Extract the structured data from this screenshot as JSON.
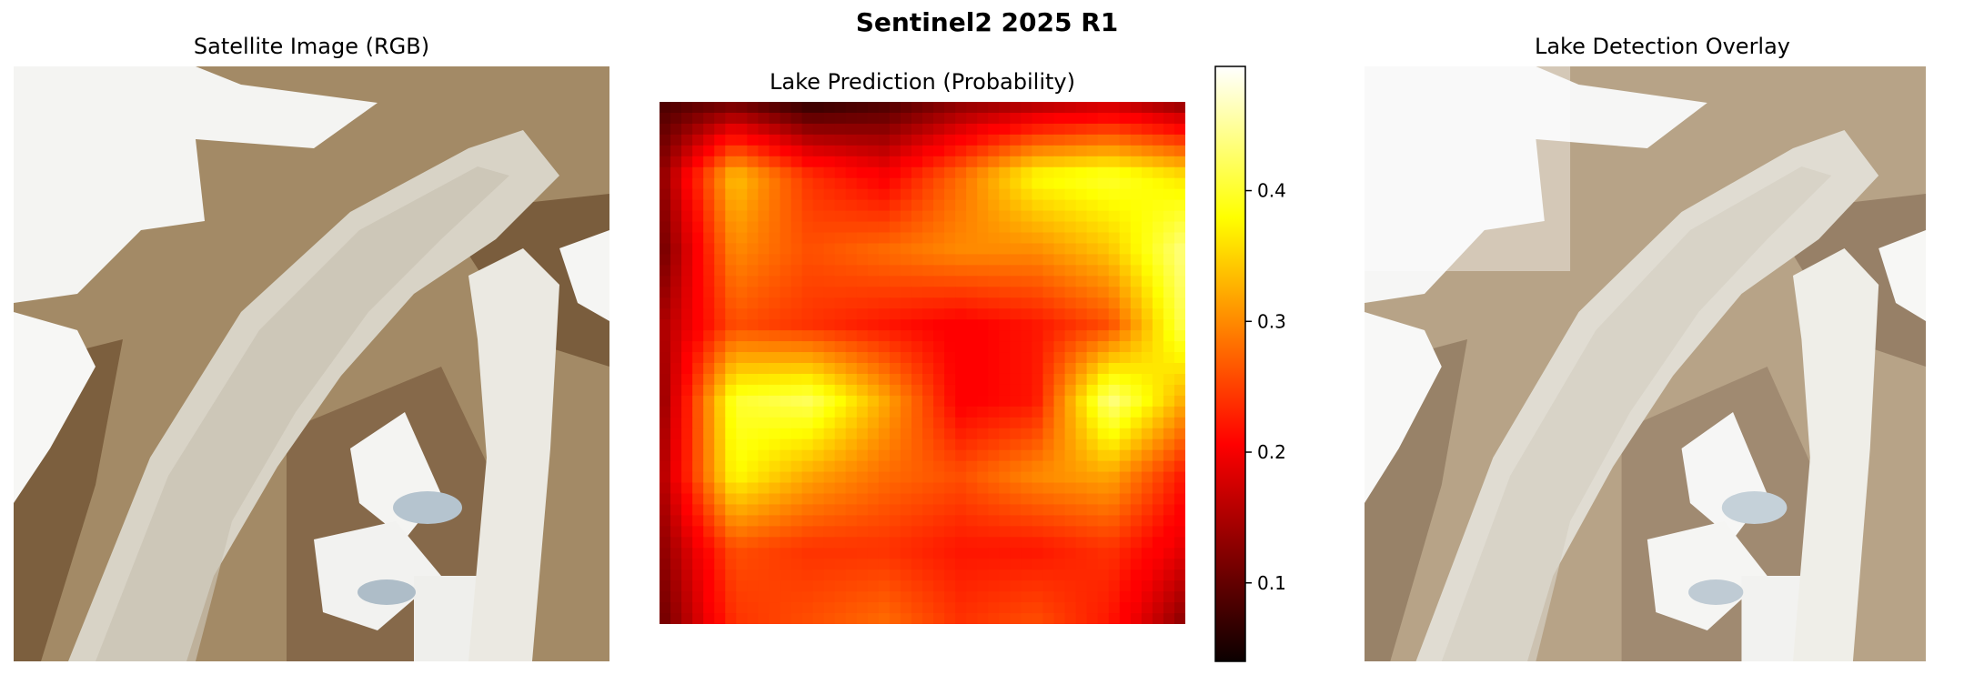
{
  "figure": {
    "title": "Sentinel2 2025 R1"
  },
  "panels": {
    "rgb": {
      "title": "Satellite Image (RGB)"
    },
    "probability": {
      "title": "Lake Prediction (Probability)",
      "colormap": "hot"
    },
    "overlay": {
      "title": "Lake Detection Overlay"
    }
  },
  "colorbar": {
    "range": [
      0.04,
      0.495
    ],
    "ticks": [
      {
        "value": 0.1,
        "label": "0.1"
      },
      {
        "value": 0.2,
        "label": "0.2"
      },
      {
        "value": 0.3,
        "label": "0.3"
      },
      {
        "value": 0.4,
        "label": "0.4"
      }
    ]
  },
  "chart_data": {
    "type": "heatmap",
    "title": "Lake Prediction (Probability)",
    "colormap": "hot",
    "vmin": 0.04,
    "vmax": 0.495,
    "colorbar_ticks": [
      0.1,
      0.2,
      0.3,
      0.4
    ],
    "grid": false,
    "values_coarse_8x8": [
      [
        0.08,
        0.1,
        0.06,
        0.08,
        0.12,
        0.14,
        0.16,
        0.12
      ],
      [
        0.12,
        0.34,
        0.24,
        0.2,
        0.28,
        0.38,
        0.4,
        0.36
      ],
      [
        0.1,
        0.3,
        0.26,
        0.28,
        0.3,
        0.3,
        0.34,
        0.44
      ],
      [
        0.14,
        0.26,
        0.24,
        0.22,
        0.2,
        0.22,
        0.26,
        0.42
      ],
      [
        0.12,
        0.4,
        0.42,
        0.32,
        0.2,
        0.22,
        0.44,
        0.32
      ],
      [
        0.14,
        0.38,
        0.32,
        0.28,
        0.26,
        0.3,
        0.32,
        0.22
      ],
      [
        0.12,
        0.26,
        0.24,
        0.24,
        0.22,
        0.22,
        0.24,
        0.18
      ],
      [
        0.1,
        0.24,
        0.26,
        0.28,
        0.24,
        0.26,
        0.22,
        0.12
      ]
    ]
  }
}
